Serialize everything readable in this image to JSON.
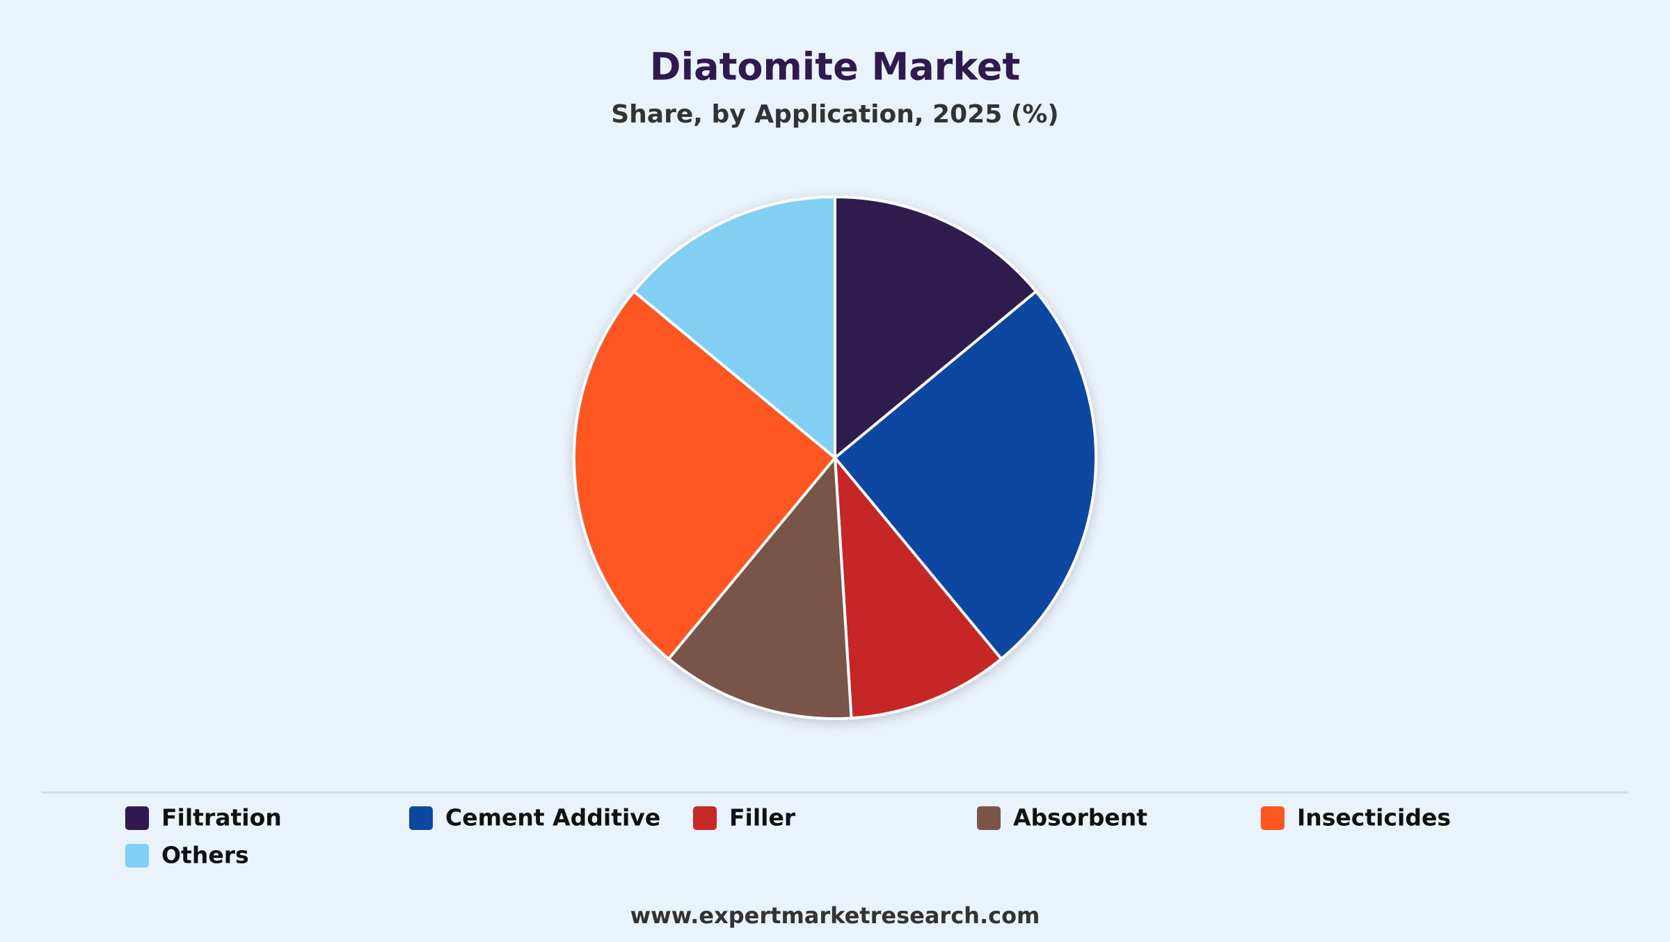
{
  "chart_data": {
    "type": "pie",
    "title": "Diatomite Market",
    "subtitle": "Share, by Application, 2025 (%)",
    "categories": [
      "Filtration",
      "Cement Additive",
      "Filler",
      "Absorbent",
      "Insecticides",
      "Others"
    ],
    "values": [
      14,
      25,
      10,
      12,
      25,
      14
    ],
    "colors": [
      "#2e1a4f",
      "#0d47a1",
      "#c62828",
      "#795548",
      "#ff5722",
      "#81cff2"
    ],
    "legend": "bottom"
  },
  "footer": "www.expertmarketresearch.com"
}
